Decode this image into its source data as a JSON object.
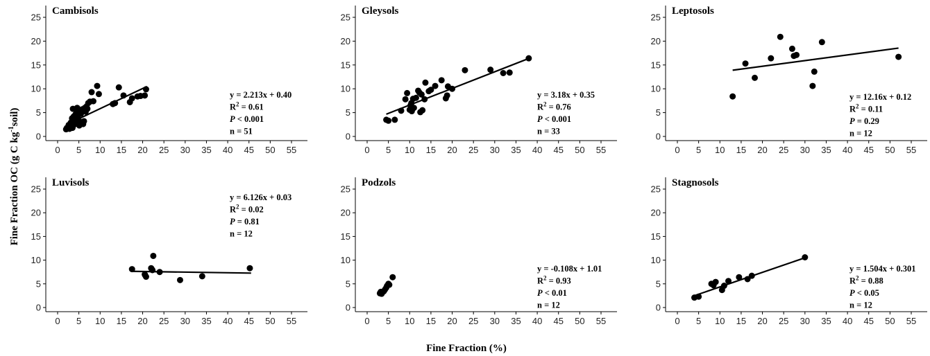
{
  "figure": {
    "xlabel": "Fine Fraction (%)",
    "ylabel_main": "Fine Fraction OC (g C kg",
    "ylabel_sup": "-1",
    "ylabel_end": "soil)"
  },
  "chart_data": [
    {
      "type": "scatter",
      "title": "Cambisols",
      "xlim": [
        0,
        55
      ],
      "ylim": [
        0,
        25
      ],
      "xticks": [
        0,
        5,
        10,
        15,
        20,
        25,
        30,
        35,
        40,
        45,
        50,
        55
      ],
      "yticks": [
        0,
        5,
        10,
        15,
        20,
        25
      ],
      "trendline": {
        "x0": 2,
        "x1": 21,
        "slope": 0.423,
        "intercept": 1.6
      },
      "stats": {
        "equation": "y = 2.213x + 0.40",
        "r2": "= 0.61",
        "p": "< 0.001",
        "n": "n = 51"
      },
      "stats_pos": "middle-right",
      "points": [
        [
          2,
          1.5
        ],
        [
          2.2,
          1.8
        ],
        [
          2.5,
          2
        ],
        [
          2.8,
          1.6
        ],
        [
          3,
          2.3
        ],
        [
          3.2,
          2.6
        ],
        [
          3.5,
          1.8
        ],
        [
          3.7,
          3
        ],
        [
          3.9,
          2.5
        ],
        [
          4.1,
          3.5
        ],
        [
          3.4,
          3.8
        ],
        [
          3.8,
          4.2
        ],
        [
          4.2,
          4.6
        ],
        [
          4.5,
          3.9
        ],
        [
          4.8,
          4.4
        ],
        [
          5,
          5
        ],
        [
          3.6,
          5.8
        ],
        [
          4.4,
          5.4
        ],
        [
          4.7,
          2.8
        ],
        [
          5.1,
          2.3
        ],
        [
          5.3,
          3.1
        ],
        [
          5.5,
          4.8
        ],
        [
          5.8,
          5.7
        ],
        [
          6,
          2.6
        ],
        [
          6.2,
          3.2
        ],
        [
          6.4,
          6
        ],
        [
          6.6,
          5.2
        ],
        [
          6.8,
          6.3
        ],
        [
          7,
          5.8
        ],
        [
          7.2,
          7
        ],
        [
          7.6,
          7.3
        ],
        [
          8,
          9.3
        ],
        [
          8.4,
          7.4
        ],
        [
          9.3,
          10.6
        ],
        [
          9.7,
          8.9
        ],
        [
          13,
          6.8
        ],
        [
          13.5,
          7
        ],
        [
          14.4,
          10.3
        ],
        [
          15.5,
          8.6
        ],
        [
          17,
          7.2
        ],
        [
          17.5,
          8
        ],
        [
          18.8,
          8.4
        ],
        [
          19.5,
          8.5
        ],
        [
          20.5,
          8.6
        ],
        [
          20.8,
          9.9
        ],
        [
          5.2,
          5.4
        ],
        [
          4.6,
          6
        ],
        [
          4.9,
          2.6
        ],
        [
          3.1,
          2.9
        ],
        [
          2.6,
          2.4
        ],
        [
          5.6,
          3
        ]
      ]
    },
    {
      "type": "scatter",
      "title": "Gleysols",
      "xlim": [
        0,
        55
      ],
      "ylim": [
        0,
        25
      ],
      "xticks": [
        0,
        5,
        10,
        15,
        20,
        25,
        30,
        35,
        40,
        45,
        50,
        55
      ],
      "yticks": [
        0,
        5,
        10,
        15,
        20,
        25
      ],
      "trendline": {
        "x0": 4.5,
        "x1": 38,
        "slope": 0.349,
        "intercept": 3.1
      },
      "stats": {
        "equation": "y = 3.18x + 0.35",
        "r2": "= 0.76",
        "p": "< 0.001",
        "n": "n = 33"
      },
      "stats_pos": "middle-right",
      "points": [
        [
          4.5,
          3.5
        ],
        [
          5,
          3.3
        ],
        [
          6.5,
          3.5
        ],
        [
          8,
          5.4
        ],
        [
          9,
          7.8
        ],
        [
          9.4,
          9.1
        ],
        [
          10,
          5.6
        ],
        [
          10.2,
          6.5
        ],
        [
          10.5,
          5.3
        ],
        [
          10.8,
          7.9
        ],
        [
          11,
          6
        ],
        [
          11.5,
          8.1
        ],
        [
          12,
          9.6
        ],
        [
          12.3,
          9.2
        ],
        [
          12.5,
          5.1
        ],
        [
          13,
          5.5
        ],
        [
          13.5,
          7.8
        ],
        [
          13.7,
          11.3
        ],
        [
          14.5,
          9.5
        ],
        [
          15,
          9.8
        ],
        [
          16,
          10.6
        ],
        [
          17.5,
          11.8
        ],
        [
          18.5,
          8
        ],
        [
          18.8,
          8.6
        ],
        [
          19,
          10.5
        ],
        [
          20,
          10
        ],
        [
          23,
          13.9
        ],
        [
          29,
          14
        ],
        [
          32,
          13.3
        ],
        [
          33.5,
          13.4
        ],
        [
          38,
          16.4
        ],
        [
          10.4,
          7
        ],
        [
          12.8,
          8.8
        ]
      ]
    },
    {
      "type": "scatter",
      "title": "Leptosols",
      "xlim": [
        0,
        55
      ],
      "ylim": [
        0,
        25
      ],
      "xticks": [
        0,
        5,
        10,
        15,
        20,
        25,
        30,
        35,
        40,
        45,
        50,
        55
      ],
      "yticks": [
        0,
        5,
        10,
        15,
        20,
        25
      ],
      "trendline": {
        "x0": 13,
        "x1": 52,
        "slope": 0.119,
        "intercept": 12.35
      },
      "stats": {
        "equation": "y = 12.16x + 0.12",
        "r2": "= 0.11",
        "p": "= 0.29",
        "n": "n = 12"
      },
      "stats_pos": "lower-right",
      "points": [
        [
          13,
          8.4
        ],
        [
          16,
          15.3
        ],
        [
          18.2,
          12.3
        ],
        [
          22,
          16.4
        ],
        [
          24.2,
          20.9
        ],
        [
          27,
          18.4
        ],
        [
          27.4,
          16.9
        ],
        [
          28,
          17.1
        ],
        [
          31.8,
          10.6
        ],
        [
          32.2,
          13.6
        ],
        [
          34,
          19.8
        ],
        [
          52,
          16.7
        ]
      ]
    },
    {
      "type": "scatter",
      "title": "Luvisols",
      "xlim": [
        0,
        55
      ],
      "ylim": [
        0,
        25
      ],
      "xticks": [
        0,
        5,
        10,
        15,
        20,
        25,
        30,
        35,
        40,
        45,
        50,
        55
      ],
      "yticks": [
        0,
        5,
        10,
        15,
        20,
        25
      ],
      "trendline": {
        "x0": 17.5,
        "x1": 45.5,
        "slope": -0.0133,
        "intercept": 7.87
      },
      "stats": {
        "equation": "y = 6.126x + 0.03",
        "r2": "= 0.02",
        "p": "= 0.81",
        "n": "n = 12"
      },
      "stats_pos": "upper-right",
      "points": [
        [
          17.5,
          8.1
        ],
        [
          20.5,
          7
        ],
        [
          20.8,
          6.5
        ],
        [
          22,
          8.3
        ],
        [
          22.3,
          7.9
        ],
        [
          22.5,
          10.9
        ],
        [
          24,
          7.5
        ],
        [
          28.8,
          5.8
        ],
        [
          34,
          6.6
        ],
        [
          45.2,
          8.3
        ],
        [
          20.6,
          6.8
        ],
        [
          22.2,
          8
        ]
      ]
    },
    {
      "type": "scatter",
      "title": "Podzols",
      "xlim": [
        0,
        55
      ],
      "ylim": [
        0,
        25
      ],
      "xticks": [
        0,
        5,
        10,
        15,
        20,
        25,
        30,
        35,
        40,
        45,
        50,
        55
      ],
      "yticks": [
        0,
        5,
        10,
        15,
        20,
        25
      ],
      "trendline": null,
      "stats": {
        "equation": "y = -0.108x + 1.01",
        "r2": "= 0.93",
        "p": "< 0.01",
        "n": "n = 12"
      },
      "stats_pos": "lower-right",
      "points": [
        [
          3,
          3
        ],
        [
          3.2,
          3.3
        ],
        [
          3.4,
          2.9
        ],
        [
          3.6,
          3.2
        ],
        [
          3.9,
          3.4
        ],
        [
          4.2,
          3.8
        ],
        [
          4.5,
          4.2
        ],
        [
          4.7,
          4.6
        ],
        [
          5,
          5
        ],
        [
          5.2,
          4.8
        ],
        [
          6,
          6.4
        ],
        [
          3.3,
          3.1
        ]
      ]
    },
    {
      "type": "scatter",
      "title": "Stagnosols",
      "xlim": [
        0,
        55
      ],
      "ylim": [
        0,
        25
      ],
      "xticks": [
        0,
        5,
        10,
        15,
        20,
        25,
        30,
        35,
        40,
        45,
        50,
        55
      ],
      "yticks": [
        0,
        5,
        10,
        15,
        20,
        25
      ],
      "trendline": {
        "x0": 4,
        "x1": 30,
        "slope": 0.3077,
        "intercept": 1.27
      },
      "stats": {
        "equation": "y = 1.504x + 0.301",
        "r2": "= 0.88",
        "p": "< 0.05",
        "n": "n = 12"
      },
      "stats_pos": "lower-right",
      "points": [
        [
          4,
          2.1
        ],
        [
          5,
          2.3
        ],
        [
          8,
          5
        ],
        [
          8.5,
          4.7
        ],
        [
          9,
          5.4
        ],
        [
          10.5,
          3.7
        ],
        [
          11,
          4.6
        ],
        [
          12,
          5.6
        ],
        [
          14.5,
          6.4
        ],
        [
          16.5,
          6
        ],
        [
          17.5,
          6.7
        ],
        [
          30,
          10.6
        ]
      ]
    }
  ]
}
